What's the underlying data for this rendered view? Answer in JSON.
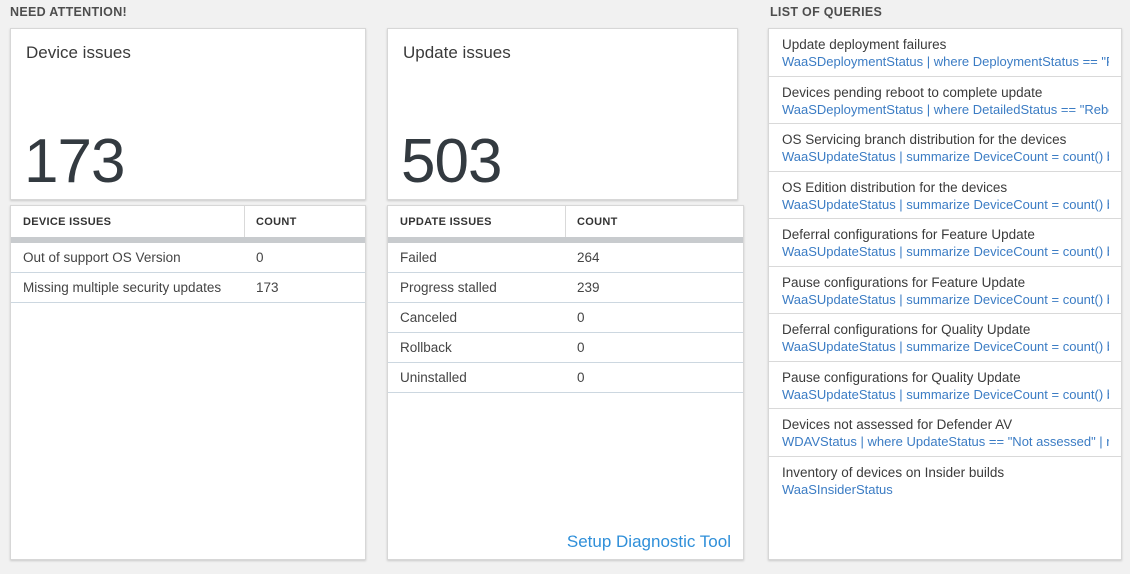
{
  "sections": {
    "need_attention": "NEED ATTENTION!",
    "list_of_queries": "LIST OF QUERIES"
  },
  "device_card": {
    "title": "Device issues",
    "count": "173",
    "table": {
      "headers": [
        "DEVICE ISSUES",
        "COUNT"
      ],
      "rows": [
        {
          "label": "Out of support OS Version",
          "count": "0"
        },
        {
          "label": "Missing multiple security updates",
          "count": "173"
        }
      ]
    }
  },
  "update_card": {
    "title": "Update issues",
    "count": "503",
    "table": {
      "headers": [
        "UPDATE ISSUES",
        "COUNT"
      ],
      "rows": [
        {
          "label": "Failed",
          "count": "264"
        },
        {
          "label": "Progress stalled",
          "count": "239"
        },
        {
          "label": "Canceled",
          "count": "0"
        },
        {
          "label": "Rollback",
          "count": "0"
        },
        {
          "label": "Uninstalled",
          "count": "0"
        }
      ]
    },
    "link_label": "Setup Diagnostic Tool"
  },
  "queries": {
    "items": [
      {
        "title": "Update deployment failures",
        "query": "WaaSDeploymentStatus | where DeploymentStatus == \"Failed\" |..."
      },
      {
        "title": "Devices pending reboot to complete update",
        "query": "WaaSDeploymentStatus | where DetailedStatus == \"Reboot pend..."
      },
      {
        "title": "OS Servicing branch distribution for the devices",
        "query": "WaaSUpdateStatus | summarize DeviceCount = count() by OSSer..."
      },
      {
        "title": "OS Edition distribution for the devices",
        "query": "WaaSUpdateStatus | summarize DeviceCount = count() by OSEdit..."
      },
      {
        "title": "Deferral configurations for Feature Update",
        "query": "WaaSUpdateStatus | summarize DeviceCount = count() by Featur..."
      },
      {
        "title": "Pause configurations for Feature Update",
        "query": "WaaSUpdateStatus | summarize DeviceCount = count() by Featur..."
      },
      {
        "title": "Deferral configurations for Quality Update",
        "query": "WaaSUpdateStatus | summarize DeviceCount = count() by Qualit..."
      },
      {
        "title": "Pause configurations for Quality Update",
        "query": "WaaSUpdateStatus | summarize DeviceCount = count() by Qualit..."
      },
      {
        "title": "Devices not assessed for Defender AV",
        "query": "WDAVStatus | where UpdateStatus == \"Not assessed\" | render ta..."
      },
      {
        "title": "Inventory of devices on Insider builds",
        "query": "WaaSInsiderStatus"
      }
    ]
  },
  "colors": {
    "page_background": "#f1f1f1",
    "card_background": "#ffffff",
    "query_link_blue": "#3b7cc4",
    "setup_link_blue": "#2f8fd9",
    "number_text": "#333a40",
    "thick_divider": "#c8cbce",
    "row_divider": "#ccd7e0"
  }
}
